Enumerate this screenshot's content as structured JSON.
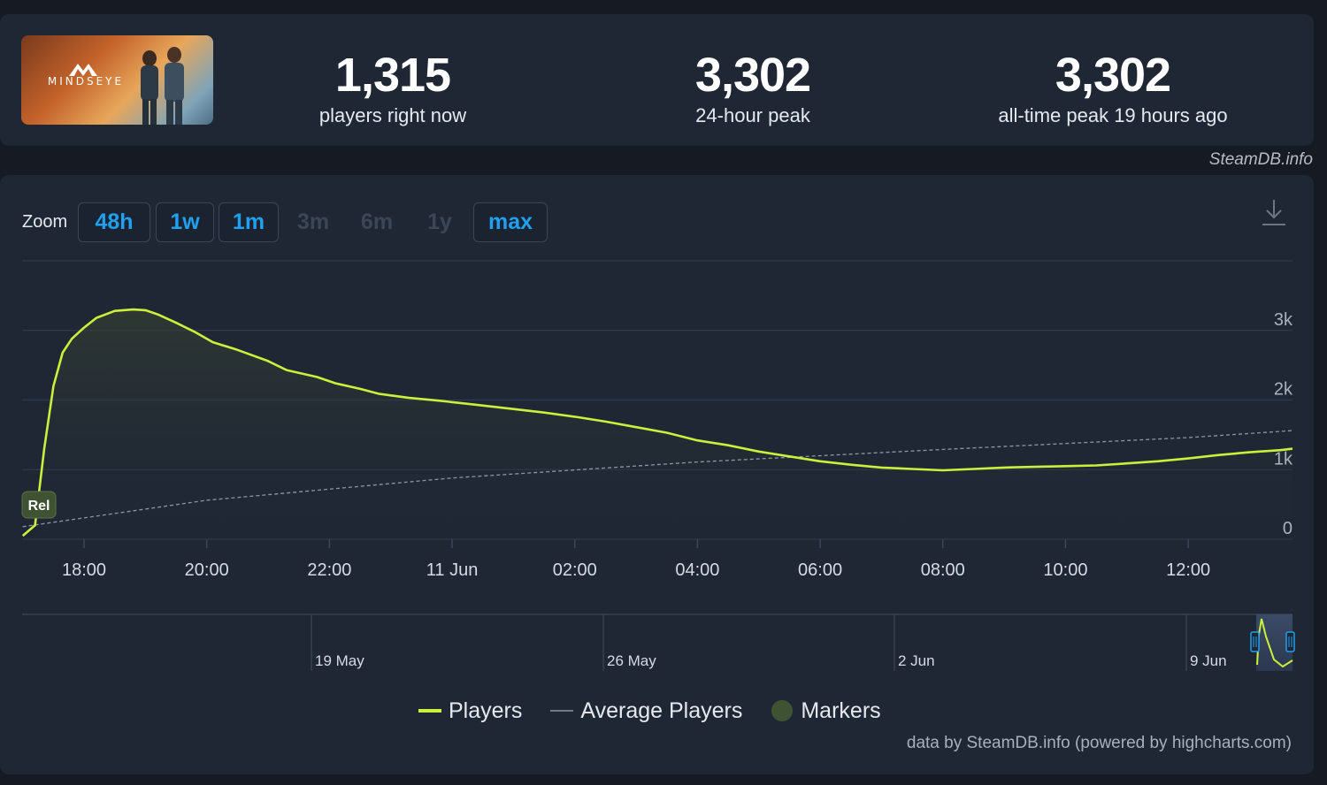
{
  "game": {
    "logo_text": "MINDSEYE"
  },
  "stats": [
    {
      "value": "1,315",
      "label": "players right now"
    },
    {
      "value": "3,302",
      "label": "24-hour peak"
    },
    {
      "value": "3,302",
      "label": "all-time peak 19 hours ago"
    }
  ],
  "credit_top": "SteamDB.info",
  "zoom": {
    "label": "Zoom",
    "buttons": [
      {
        "label": "48h",
        "enabled": true
      },
      {
        "label": "1w",
        "enabled": true
      },
      {
        "label": "1m",
        "enabled": true
      },
      {
        "label": "3m",
        "enabled": false
      },
      {
        "label": "6m",
        "enabled": false
      },
      {
        "label": "1y",
        "enabled": false
      },
      {
        "label": "max",
        "enabled": true
      }
    ]
  },
  "legend": {
    "players": "Players",
    "average": "Average Players",
    "markers": "Markers"
  },
  "credit_bottom": "data by SteamDB.info (powered by highcharts.com)",
  "colors": {
    "players_line": "#c9f03c",
    "average_line": "#8d96a3",
    "marker_fill": "#3f5231",
    "zoom_active": "#1fa0f0",
    "background": "#1f2735"
  },
  "icons": [
    "download-icon",
    "logo-icon"
  ],
  "chart_data": {
    "type": "line",
    "x_unit": "hours",
    "x_range": [
      16.99,
      37.7
    ],
    "ylim": [
      0,
      4000
    ],
    "y_ticks": [
      "0",
      "1k",
      "2k",
      "3k"
    ],
    "y_tick_values": [
      0,
      1000,
      2000,
      3000
    ],
    "x_ticks": [
      {
        "x": 18,
        "label": "18:00"
      },
      {
        "x": 20,
        "label": "20:00"
      },
      {
        "x": 22,
        "label": "22:00"
      },
      {
        "x": 24,
        "label": "11 Jun"
      },
      {
        "x": 26,
        "label": "02:00"
      },
      {
        "x": 28,
        "label": "04:00"
      },
      {
        "x": 30,
        "label": "06:00"
      },
      {
        "x": 32,
        "label": "08:00"
      },
      {
        "x": 34,
        "label": "10:00"
      },
      {
        "x": 36,
        "label": "12:00"
      }
    ],
    "grid": true,
    "series": [
      {
        "name": "Players",
        "type": "area",
        "x": [
          17.0,
          17.2,
          17.35,
          17.5,
          17.65,
          17.8,
          18.0,
          18.2,
          18.5,
          18.8,
          19.0,
          19.2,
          19.5,
          19.8,
          20.1,
          20.5,
          21.0,
          21.3,
          21.8,
          22.1,
          22.5,
          22.8,
          23.3,
          23.8,
          24.3,
          25.0,
          25.5,
          26.0,
          26.5,
          27.0,
          27.5,
          28.0,
          28.5,
          29.0,
          29.5,
          30.0,
          30.5,
          31.0,
          31.5,
          32.0,
          32.5,
          33.0,
          33.5,
          34.0,
          34.5,
          35.0,
          35.5,
          36.0,
          36.5,
          37.0,
          37.5,
          37.7
        ],
        "values": [
          50,
          200,
          1300,
          2200,
          2680,
          2880,
          3040,
          3180,
          3280,
          3300,
          3290,
          3230,
          3110,
          2980,
          2830,
          2720,
          2560,
          2430,
          2330,
          2240,
          2160,
          2090,
          2030,
          1990,
          1940,
          1870,
          1820,
          1760,
          1690,
          1610,
          1530,
          1420,
          1350,
          1260,
          1190,
          1120,
          1070,
          1030,
          1010,
          990,
          1010,
          1030,
          1040,
          1050,
          1060,
          1090,
          1120,
          1160,
          1210,
          1250,
          1280,
          1300
        ]
      },
      {
        "name": "Average Players",
        "type": "line",
        "x": [
          17.0,
          20.0,
          24.0,
          28.0,
          32.0,
          36.0,
          37.7
        ],
        "values": [
          180,
          560,
          880,
          1110,
          1290,
          1460,
          1560
        ]
      }
    ],
    "markers": [
      {
        "x": 17.25,
        "label": "Rel"
      }
    ],
    "navigator": {
      "labels": [
        "19 May",
        "26 May",
        "2 Jun",
        "9 Jun"
      ]
    }
  }
}
